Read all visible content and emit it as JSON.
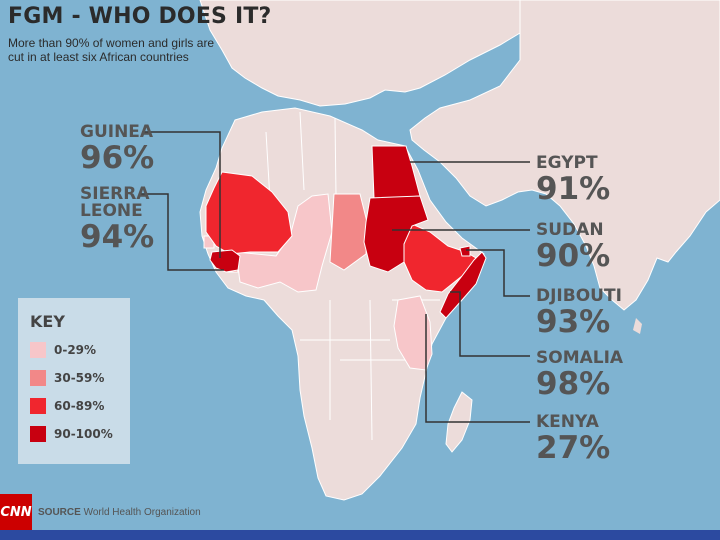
{
  "header": {
    "title": "FGM - WHO DOES IT?",
    "subtitle": "More than 90% of women and girls are cut in at least six African countries"
  },
  "callouts": [
    {
      "name": "GUINEA",
      "pct": "96%"
    },
    {
      "name": "SIERRA LEONE",
      "name_line1": "SIERRA",
      "name_line2": "LEONE",
      "pct": "94%"
    },
    {
      "name": "EGYPT",
      "pct": "91%"
    },
    {
      "name": "SUDAN",
      "pct": "90%"
    },
    {
      "name": "DJIBOUTI",
      "pct": "93%"
    },
    {
      "name": "SOMALIA",
      "pct": "98%"
    },
    {
      "name": "KENYA",
      "pct": "27%"
    }
  ],
  "key": {
    "title": "KEY",
    "items": [
      {
        "label": "0-29%",
        "color": "#f7c6c9"
      },
      {
        "label": "30-59%",
        "color": "#f28888"
      },
      {
        "label": "60-89%",
        "color": "#f0262e"
      },
      {
        "label": "90-100%",
        "color": "#c80010"
      }
    ]
  },
  "footer": {
    "logo": "CNN",
    "source_label": "SOURCE",
    "source_text": "World Health Organization"
  },
  "colors": {
    "ocean": "#7fb3d1",
    "land": "#ecdcda",
    "bottom_bar": "#2c4aa0",
    "callout_line": "#333333"
  }
}
